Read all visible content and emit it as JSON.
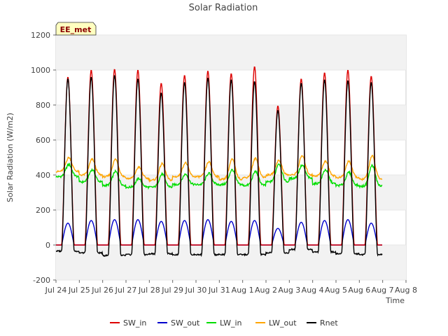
{
  "chart_data": {
    "type": "line",
    "title": "Solar Radiation",
    "xlabel": "Time",
    "ylabel": "Solar Radiation (W/m2)",
    "site_badge": "EE_met",
    "ylim": [
      -200,
      1200
    ],
    "yticks": [
      -200,
      0,
      200,
      400,
      600,
      800,
      1000,
      1200
    ],
    "xlim": [
      0,
      15
    ],
    "xtick_labels": [
      "Jul 24",
      "Jul 25",
      "Jul 26",
      "Jul 27",
      "Jul 28",
      "Jul 29",
      "Jul 30",
      "Jul 31",
      "Aug 1",
      "Aug 2",
      "Aug 3",
      "Aug 4",
      "Aug 5",
      "Aug 6",
      "Aug 7",
      "Aug 8"
    ],
    "grid": "alternating horizontal bands",
    "legend_position": "bottom",
    "series": [
      {
        "name": "SW_in",
        "color": "#dd0000",
        "daily_peak": [
          960,
          1000,
          1005,
          1000,
          925,
          970,
          995,
          980,
          1020,
          795,
          950,
          985,
          1000,
          965
        ]
      },
      {
        "name": "SW_out",
        "color": "#0000cc",
        "daily_peak": [
          125,
          140,
          145,
          145,
          135,
          140,
          145,
          135,
          140,
          95,
          130,
          140,
          145,
          125
        ]
      },
      {
        "name": "LW_in",
        "color": "#00dd00",
        "daily_peak": [
          460,
          430,
          420,
          380,
          405,
          405,
          410,
          430,
          420,
          465,
          455,
          430,
          415,
          455
        ],
        "daily_base": [
          390,
          360,
          340,
          330,
          330,
          345,
          345,
          345,
          340,
          360,
          380,
          350,
          340,
          335
        ]
      },
      {
        "name": "LW_out",
        "color": "#ffa500",
        "daily_peak": [
          500,
          490,
          490,
          445,
          465,
          470,
          475,
          490,
          495,
          485,
          510,
          480,
          480,
          510
        ],
        "daily_base": [
          420,
          400,
          390,
          380,
          370,
          390,
          390,
          375,
          385,
          400,
          400,
          395,
          385,
          375
        ]
      },
      {
        "name": "Rnet",
        "color": "#000000",
        "daily_peak": [
          950,
          960,
          970,
          950,
          870,
          930,
          955,
          945,
          935,
          770,
          925,
          945,
          940,
          930
        ],
        "night_value": [
          -35,
          -45,
          -60,
          -55,
          -50,
          -55,
          -55,
          -55,
          -55,
          -45,
          -25,
          -40,
          -50,
          -55
        ]
      }
    ]
  }
}
